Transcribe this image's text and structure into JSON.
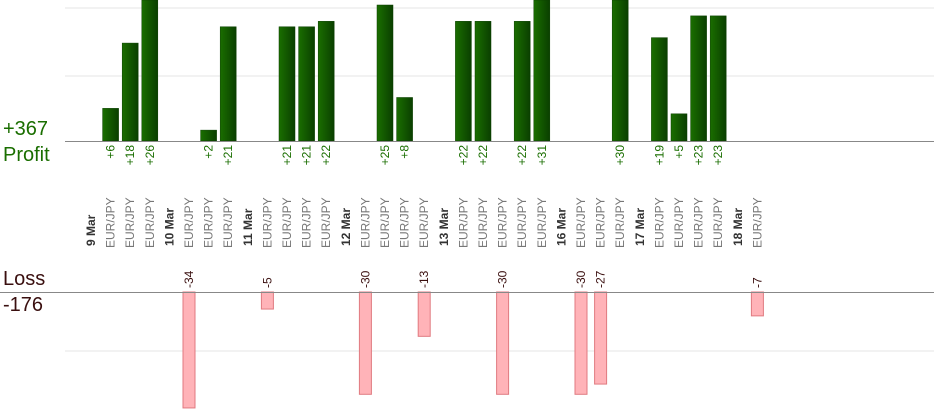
{
  "summary": {
    "profit_total": "+367",
    "profit_label": "Profit",
    "loss_label": "Loss",
    "loss_total": "-176"
  },
  "colors": {
    "profit_bar": "#1a6e00",
    "profit_bar_dark": "#0a3f00",
    "profit_text": "#1a6e00",
    "loss_bar": "#ffb3b8",
    "loss_bar_border": "#e07a80",
    "loss_text": "#3a0f0f",
    "axis": "#888888",
    "grid": "#e6e6e6",
    "day_label": "#333333",
    "pair_label": "#777777"
  },
  "chart_data": {
    "type": "bar",
    "grid": true,
    "days": [
      {
        "label": "9 Mar",
        "trades": [
          {
            "pair": "EUR/JPY",
            "value": 6
          },
          {
            "pair": "EUR/JPY",
            "value": 18
          },
          {
            "pair": "EUR/JPY",
            "value": 26
          }
        ]
      },
      {
        "label": "10 Mar",
        "trades": [
          {
            "pair": "EUR/JPY",
            "value": -34
          },
          {
            "pair": "EUR/JPY",
            "value": 2
          },
          {
            "pair": "EUR/JPY",
            "value": 21
          }
        ]
      },
      {
        "label": "11 Mar",
        "trades": [
          {
            "pair": "EUR/JPY",
            "value": -5
          },
          {
            "pair": "EUR/JPY",
            "value": 21
          },
          {
            "pair": "EUR/JPY",
            "value": 21
          },
          {
            "pair": "EUR/JPY",
            "value": 22
          }
        ]
      },
      {
        "label": "12 Mar",
        "trades": [
          {
            "pair": "EUR/JPY",
            "value": -30
          },
          {
            "pair": "EUR/JPY",
            "value": 25
          },
          {
            "pair": "EUR/JPY",
            "value": 8
          },
          {
            "pair": "EUR/JPY",
            "value": -13
          }
        ]
      },
      {
        "label": "13 Mar",
        "trades": [
          {
            "pair": "EUR/JPY",
            "value": 22
          },
          {
            "pair": "EUR/JPY",
            "value": 22
          },
          {
            "pair": "EUR/JPY",
            "value": -30
          },
          {
            "pair": "EUR/JPY",
            "value": 22
          },
          {
            "pair": "EUR/JPY",
            "value": 31
          }
        ]
      },
      {
        "label": "16 Mar",
        "trades": [
          {
            "pair": "EUR/JPY",
            "value": -30
          },
          {
            "pair": "EUR/JPY",
            "value": -27
          },
          {
            "pair": "EUR/JPY",
            "value": 30
          }
        ]
      },
      {
        "label": "17 Mar",
        "trades": [
          {
            "pair": "EUR/JPY",
            "value": 19
          },
          {
            "pair": "EUR/JPY",
            "value": 5
          },
          {
            "pair": "EUR/JPY",
            "value": 23
          },
          {
            "pair": "EUR/JPY",
            "value": 23
          }
        ]
      },
      {
        "label": "18 Mar",
        "trades": [
          {
            "pair": "EUR/JPY",
            "value": -7
          }
        ]
      }
    ]
  }
}
